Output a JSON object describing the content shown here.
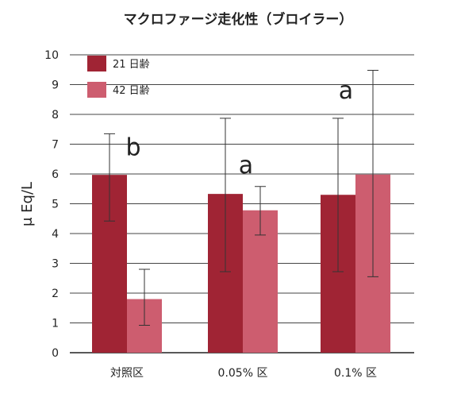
{
  "chart_data": {
    "type": "bar",
    "title": "マクロファージ走化性（ブロイラー）",
    "ylabel": "μ Eq/L",
    "xlabel": "",
    "ylim": [
      0,
      10
    ],
    "yticks": [
      0,
      1,
      2,
      3,
      4,
      5,
      6,
      7,
      8,
      9,
      10
    ],
    "grid": true,
    "legend_position": "top-left",
    "categories": [
      "対照区",
      "0.05% 区",
      "0.1% 区"
    ],
    "series": [
      {
        "name": "21 日齢",
        "color": "#a02434",
        "values": [
          5.97,
          5.33,
          5.3
        ],
        "error_low": [
          4.42,
          2.72,
          2.72
        ],
        "error_high": [
          7.35,
          7.87,
          7.87
        ]
      },
      {
        "name": "42 日齢",
        "color": "#cd5d6f",
        "values": [
          1.8,
          4.78,
          5.98
        ],
        "error_low": [
          0.92,
          3.95,
          2.55
        ],
        "error_high": [
          2.8,
          5.58,
          9.48
        ]
      }
    ],
    "annotations": [
      {
        "text": "b",
        "category": 0,
        "y": 6.9
      },
      {
        "text": "a",
        "category": 1,
        "y": 6.3
      },
      {
        "text": "a",
        "category": 2,
        "y": 8.8
      }
    ]
  }
}
